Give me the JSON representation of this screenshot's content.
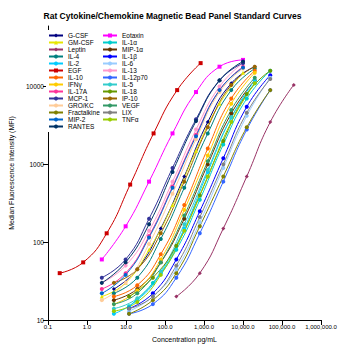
{
  "chart_data": {
    "type": "line",
    "title": "Rat Cytokine/Chemokine Magnetic Bead Panel Standard Curves",
    "x_label": "Concentration pg/mL",
    "y_label": "Median Fluorescence Intensity (MFI)",
    "log": true,
    "grid": false,
    "legend": "upper left",
    "xlim": [
      0.1,
      1000000
    ],
    "ylim": [
      10,
      60000
    ],
    "xticks": [
      0.1,
      {
        "value": 1,
        "label": "1.0"
      },
      {
        "value": 10,
        "label": "10.0"
      },
      {
        "value": 100,
        "label": "100.0"
      },
      {
        "value": 1000,
        "label": "1,000.0"
      },
      {
        "value": 10000,
        "label": "10,000.0"
      },
      {
        "value": 100000,
        "label": "100,000.0"
      },
      {
        "value": 1000000,
        "label": "1,000,000.0"
      }
    ],
    "yticks": [
      10,
      100,
      1000,
      10000
    ],
    "series": [
      {
        "name": "G-CSF",
        "color": "#000080",
        "marker": "diamond",
        "x": [
          4.9,
          19.5,
          78,
          312,
          1250,
          5000,
          20000
        ],
        "values": [
          25,
          45,
          150,
          700,
          3500,
          11000,
          18000
        ]
      },
      {
        "name": "Eotaxin",
        "color": "#ff00ff",
        "marker": "square",
        "x": [
          2.4,
          9.8,
          39,
          156,
          625,
          2500,
          10000
        ],
        "values": [
          60,
          160,
          600,
          2500,
          8500,
          18000,
          22000
        ]
      },
      {
        "name": "GM-CSF",
        "color": "#e6e600",
        "marker": "triangle",
        "x": [
          2.4,
          9.8,
          39,
          156,
          625,
          2500,
          10000
        ],
        "values": [
          20,
          30,
          80,
          300,
          1500,
          6000,
          15000
        ]
      },
      {
        "name": "IL-1α",
        "color": "#00cccc",
        "marker": "circle",
        "x": [
          12,
          49,
          195,
          781,
          3125,
          12500,
          50000
        ],
        "values": [
          15,
          30,
          80,
          350,
          1800,
          7000,
          16000
        ]
      },
      {
        "name": "Leptin",
        "color": "#993366",
        "marker": "diamond",
        "x": [
          195,
          781,
          3125,
          12500,
          50000,
          200000
        ],
        "values": [
          20,
          40,
          150,
          700,
          3500,
          10500
        ]
      },
      {
        "name": "MIP-1α",
        "color": "#663300",
        "marker": "circle",
        "x": [
          4.9,
          19.5,
          78,
          312,
          1250,
          5000,
          20000
        ],
        "values": [
          18,
          25,
          55,
          200,
          1000,
          4500,
          12000
        ]
      },
      {
        "name": "IL-4",
        "color": "#008080",
        "marker": "circle",
        "x": [
          4.9,
          19.5,
          78,
          312,
          1250,
          5000,
          20000
        ],
        "values": [
          22,
          35,
          110,
          500,
          2500,
          9000,
          17000
        ]
      },
      {
        "name": "IL-1β",
        "color": "#0000ff",
        "marker": "circle",
        "x": [
          12,
          49,
          195,
          781,
          3125,
          12500,
          50000
        ],
        "values": [
          14,
          22,
          60,
          250,
          1200,
          5500,
          14000
        ]
      },
      {
        "name": "IL-2",
        "color": "#00ccff",
        "marker": "circle",
        "x": [
          4.9,
          19.5,
          78,
          312,
          1250,
          5000,
          20000
        ],
        "values": [
          12,
          18,
          40,
          150,
          800,
          4000,
          12000
        ]
      },
      {
        "name": "IL-6",
        "color": "#99ccff",
        "marker": "circle",
        "x": [
          12,
          49,
          195,
          781,
          3125,
          12500,
          50000
        ],
        "values": [
          13,
          20,
          45,
          180,
          900,
          4200,
          13000
        ]
      },
      {
        "name": "EGF",
        "color": "#cc0000",
        "marker": "square",
        "x": [
          0.2,
          0.8,
          3.2,
          12.8,
          51,
          205,
          820
        ],
        "values": [
          40,
          55,
          130,
          550,
          2500,
          9000,
          20000
        ]
      },
      {
        "name": "IL-13",
        "color": "#ff99cc",
        "marker": "circle",
        "x": [
          2.4,
          9.8,
          39,
          156,
          625,
          2500,
          10000
        ],
        "values": [
          30,
          50,
          140,
          600,
          2800,
          10000,
          20000
        ]
      },
      {
        "name": "IL-10",
        "color": "#ff6600",
        "marker": "circle",
        "x": [
          4.9,
          19.5,
          78,
          312,
          1250,
          5000,
          20000
        ],
        "values": [
          20,
          28,
          70,
          300,
          1600,
          7000,
          16000
        ]
      },
      {
        "name": "IL-12p70",
        "color": "#3366ff",
        "marker": "circle",
        "x": [
          12,
          49,
          195,
          781,
          3125,
          12500,
          50000
        ],
        "values": [
          12,
          16,
          35,
          130,
          600,
          2800,
          9000
        ]
      },
      {
        "name": "IFNγ",
        "color": "#ffcc00",
        "marker": "circle",
        "x": [
          4.9,
          19.5,
          78,
          312,
          1250,
          5000,
          20000
        ],
        "values": [
          16,
          24,
          60,
          260,
          1300,
          6000,
          15000
        ]
      },
      {
        "name": "IL-5",
        "color": "#33cccc",
        "marker": "circle",
        "x": [
          4.9,
          19.5,
          78,
          312,
          1250,
          5000,
          20000
        ],
        "values": [
          14,
          19,
          42,
          170,
          850,
          4000,
          11000
        ]
      },
      {
        "name": "IL-17A",
        "color": "#ff3399",
        "marker": "circle",
        "x": [
          2.4,
          9.8,
          39,
          156,
          625,
          2500,
          10000
        ],
        "values": [
          25,
          40,
          120,
          520,
          2400,
          9000,
          18000
        ]
      },
      {
        "name": "IL-18",
        "color": "#669900",
        "marker": "circle",
        "x": [
          12,
          49,
          195,
          781,
          3125,
          12500,
          50000
        ],
        "values": [
          20,
          35,
          90,
          400,
          2000,
          8000,
          16000
        ]
      },
      {
        "name": "MCP-1",
        "color": "#333399",
        "marker": "circle",
        "x": [
          2.4,
          9.8,
          39,
          156,
          625,
          2500,
          10000
        ],
        "values": [
          35,
          60,
          200,
          900,
          3800,
          12000,
          20000
        ]
      },
      {
        "name": "IP-10",
        "color": "#996600",
        "marker": "circle",
        "x": [
          4.9,
          19.5,
          78,
          312,
          1250,
          5000,
          20000
        ],
        "values": [
          30,
          45,
          130,
          600,
          3000,
          10500,
          18000
        ]
      },
      {
        "name": "GRO/KC",
        "color": "#ffcc99",
        "marker": "circle",
        "x": [
          2.4,
          9.8,
          39,
          156,
          625,
          2500,
          10000
        ],
        "values": [
          18,
          30,
          95,
          420,
          2100,
          8500,
          17000
        ]
      },
      {
        "name": "VEGF",
        "color": "#339966",
        "marker": "circle",
        "x": [
          4.9,
          19.5,
          78,
          312,
          1250,
          5000,
          20000
        ],
        "values": [
          16,
          22,
          55,
          220,
          1100,
          5000,
          13000
        ]
      },
      {
        "name": "Fractalkine",
        "color": "#808000",
        "marker": "circle",
        "x": [
          12,
          49,
          195,
          781,
          3125,
          12500,
          50000
        ],
        "values": [
          12,
          18,
          40,
          160,
          700,
          3000,
          9000
        ]
      },
      {
        "name": "LIX",
        "color": "#808080",
        "marker": "circle",
        "x": [
          12,
          49,
          195,
          781,
          3125,
          12500,
          50000
        ],
        "values": [
          14,
          20,
          50,
          210,
          1000,
          4600,
          12500
        ]
      },
      {
        "name": "MIP-2",
        "color": "#0066cc",
        "marker": "circle",
        "x": [
          2.4,
          9.8,
          39,
          156,
          625,
          2500,
          10000
        ],
        "values": [
          22,
          38,
          115,
          500,
          2300,
          9000,
          17500
        ]
      },
      {
        "name": "TNFα",
        "color": "#99cc00",
        "marker": "circle",
        "x": [
          4.9,
          19.5,
          78,
          312,
          1250,
          5000,
          20000
        ],
        "values": [
          13,
          17,
          38,
          140,
          700,
          3500,
          11000
        ]
      },
      {
        "name": "RANTES",
        "color": "#003366",
        "marker": "circle",
        "x": [
          2.4,
          9.8,
          39,
          156,
          625,
          2500,
          10000
        ],
        "values": [
          30,
          55,
          170,
          800,
          3600,
          12000,
          21000
        ]
      }
    ]
  }
}
